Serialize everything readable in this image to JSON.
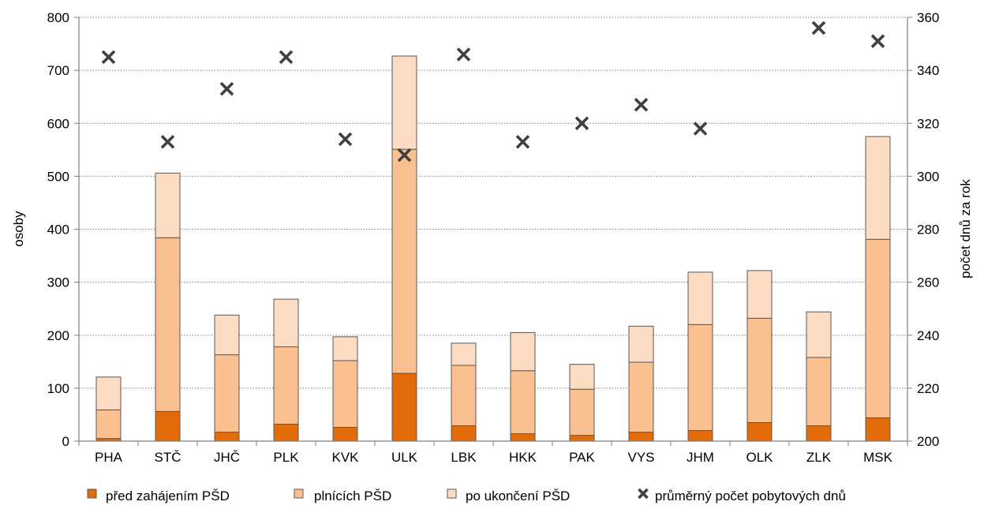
{
  "chart_data": {
    "type": "bar",
    "stacked": true,
    "categories": [
      "PHA",
      "STČ",
      "JHČ",
      "PLK",
      "KVK",
      "ULK",
      "LBK",
      "HKK",
      "PAK",
      "VYS",
      "JHM",
      "OLK",
      "ZLK",
      "MSK"
    ],
    "series": [
      {
        "name": "před zahájením PŠD",
        "axis": "left",
        "kind": "bar",
        "color": "#e36c0a",
        "values": [
          5,
          56,
          17,
          32,
          26,
          128,
          29,
          14,
          11,
          17,
          20,
          35,
          29,
          44
        ]
      },
      {
        "name": "plnících PŠD",
        "axis": "left",
        "kind": "bar",
        "color": "#fac090",
        "values": [
          54,
          328,
          146,
          146,
          126,
          423,
          114,
          119,
          87,
          132,
          200,
          197,
          129,
          337
        ]
      },
      {
        "name": "po ukončení PŠD",
        "axis": "left",
        "kind": "bar",
        "color": "#fcdcc2",
        "values": [
          62,
          122,
          75,
          90,
          45,
          176,
          42,
          72,
          47,
          68,
          99,
          90,
          86,
          194
        ]
      },
      {
        "name": "průměrný počet pobytových dnů",
        "axis": "right",
        "kind": "scatter",
        "marker": "x",
        "color": "#404040",
        "values": [
          345,
          313,
          333,
          345,
          314,
          308,
          346,
          313,
          320,
          327,
          318,
          null,
          356,
          351
        ]
      }
    ],
    "ylabel": "osoby",
    "ylim": [
      0,
      800
    ],
    "yticks": [
      "0",
      "100",
      "200",
      "300",
      "400",
      "500",
      "600",
      "700",
      "800"
    ],
    "y2label": "počet dnů za rok",
    "y2lim": [
      200,
      360
    ],
    "y2ticks": [
      "200",
      "220",
      "240",
      "260",
      "280",
      "300",
      "320",
      "340",
      "360"
    ],
    "grid": "horizontal dotted",
    "legend": "bottom",
    "colors": {
      "axis": "#808080",
      "bar_stroke": "#595959",
      "grid": "#808080"
    }
  }
}
